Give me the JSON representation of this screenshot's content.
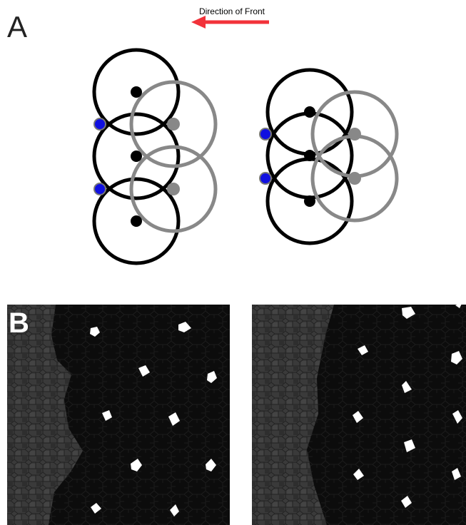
{
  "panel_a": {
    "label": "A",
    "arrow_label": "Direction of Front"
  },
  "panel_b": {
    "label": "B"
  }
}
